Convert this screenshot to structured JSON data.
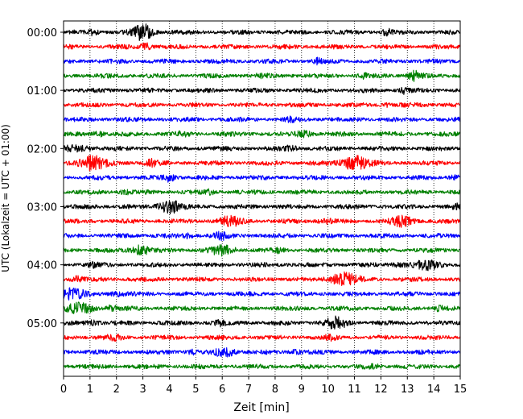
{
  "chart_data": {
    "type": "line",
    "title": "",
    "xlabel": "Zeit  [min]",
    "ylabel": "UTC (Lokalzeit = UTC + 01:00)",
    "xlim": [
      0,
      15
    ],
    "xticks": [
      "0",
      "1",
      "2",
      "3",
      "4",
      "5",
      "6",
      "7",
      "8",
      "9",
      "10",
      "11",
      "12",
      "13",
      "14",
      "15"
    ],
    "yticks": [
      "00:00",
      "01:00",
      "02:00",
      "03:00",
      "04:00",
      "05:00"
    ],
    "grid": "vertical dotted",
    "trace_colors": [
      "#000000",
      "#ff0000",
      "#0000ff",
      "#008000"
    ],
    "traces_per_hour": 4,
    "trace_minutes": 15,
    "traces": [
      {
        "start": "00:00",
        "color": "#000000",
        "events": [
          [
            3.0,
            9.0,
            0.35
          ],
          [
            1.1,
            2.5,
            0.2
          ],
          [
            12.2,
            3,
            0.2
          ]
        ]
      },
      {
        "start": "00:15",
        "color": "#ff0000",
        "events": [
          [
            3.1,
            3.5,
            0.2
          ]
        ]
      },
      {
        "start": "00:30",
        "color": "#0000ff",
        "events": [
          [
            9.6,
            2.5,
            0.15
          ]
        ]
      },
      {
        "start": "00:45",
        "color": "#008000",
        "events": [
          [
            13.3,
            5,
            0.25
          ],
          [
            7.5,
            2,
            0.2
          ],
          [
            11.3,
            2,
            0.2
          ]
        ]
      },
      {
        "start": "01:00",
        "color": "#000000",
        "events": [
          [
            12.9,
            3,
            0.15
          ]
        ]
      },
      {
        "start": "01:15",
        "color": "#ff0000",
        "events": [
          [
            12.2,
            2,
            0.15
          ]
        ]
      },
      {
        "start": "01:30",
        "color": "#0000ff",
        "events": [
          [
            8.6,
            2,
            0.15
          ]
        ]
      },
      {
        "start": "01:45",
        "color": "#008000",
        "events": [
          [
            9.1,
            3,
            0.3
          ],
          [
            1.3,
            2.5,
            0.25
          ],
          [
            4.5,
            2,
            0.2
          ]
        ]
      },
      {
        "start": "02:00",
        "color": "#000000",
        "events": [
          [
            8.6,
            3,
            0.2
          ],
          [
            0.5,
            2.5,
            0.6
          ]
        ]
      },
      {
        "start": "02:15",
        "color": "#ff0000",
        "events": [
          [
            1.1,
            8,
            0.5
          ],
          [
            11.0,
            8,
            0.5
          ],
          [
            3.3,
            3.5,
            0.25
          ]
        ]
      },
      {
        "start": "02:30",
        "color": "#0000ff",
        "events": [
          [
            4.0,
            4.5,
            0.2
          ],
          [
            14.8,
            2,
            0.2
          ]
        ]
      },
      {
        "start": "02:45",
        "color": "#008000",
        "events": [
          [
            2.3,
            2,
            0.2
          ],
          [
            5.5,
            2,
            0.2
          ]
        ]
      },
      {
        "start": "03:00",
        "color": "#000000",
        "events": [
          [
            4.0,
            7.5,
            0.4
          ],
          [
            14.8,
            2,
            0.2
          ]
        ]
      },
      {
        "start": "03:15",
        "color": "#ff0000",
        "events": [
          [
            6.3,
            5,
            0.4
          ],
          [
            12.8,
            5,
            0.4
          ],
          [
            9.9,
            2,
            0.3
          ]
        ]
      },
      {
        "start": "03:30",
        "color": "#0000ff",
        "events": [
          [
            5.9,
            4,
            0.25
          ],
          [
            4.7,
            2,
            0.2
          ]
        ]
      },
      {
        "start": "03:45",
        "color": "#008000",
        "events": [
          [
            2.9,
            5,
            0.35
          ],
          [
            6.0,
            5,
            0.45
          ],
          [
            8.1,
            2,
            0.2
          ]
        ]
      },
      {
        "start": "04:00",
        "color": "#000000",
        "events": [
          [
            13.8,
            4.5,
            0.5
          ],
          [
            1.1,
            2,
            0.2
          ],
          [
            12.7,
            2,
            0.3
          ]
        ]
      },
      {
        "start": "04:15",
        "color": "#ff0000",
        "events": [
          [
            10.6,
            7.5,
            0.5
          ],
          [
            0.5,
            3,
            0.25
          ]
        ]
      },
      {
        "start": "04:30",
        "color": "#0000ff",
        "events": [
          [
            0.3,
            6,
            0.5
          ],
          [
            2.0,
            2,
            0.3
          ]
        ]
      },
      {
        "start": "04:45",
        "color": "#008000",
        "events": [
          [
            0.6,
            5.5,
            0.5
          ],
          [
            1.8,
            3,
            0.2
          ],
          [
            14.2,
            2,
            0.2
          ]
        ]
      },
      {
        "start": "05:00",
        "color": "#000000",
        "events": [
          [
            10.3,
            6,
            0.4
          ],
          [
            1.1,
            2.5,
            0.25
          ],
          [
            5.9,
            2.5,
            0.2
          ]
        ]
      },
      {
        "start": "05:15",
        "color": "#ff0000",
        "events": [
          [
            1.9,
            2.5,
            0.25
          ],
          [
            10.1,
            2,
            0.2
          ]
        ]
      },
      {
        "start": "05:30",
        "color": "#0000ff",
        "events": [
          [
            6.1,
            5,
            0.35
          ],
          [
            4.9,
            2,
            0.2
          ],
          [
            8.8,
            2,
            0.2
          ]
        ]
      },
      {
        "start": "05:45",
        "color": "#008000",
        "events": [
          [
            11.8,
            2,
            0.2
          ]
        ]
      }
    ]
  }
}
